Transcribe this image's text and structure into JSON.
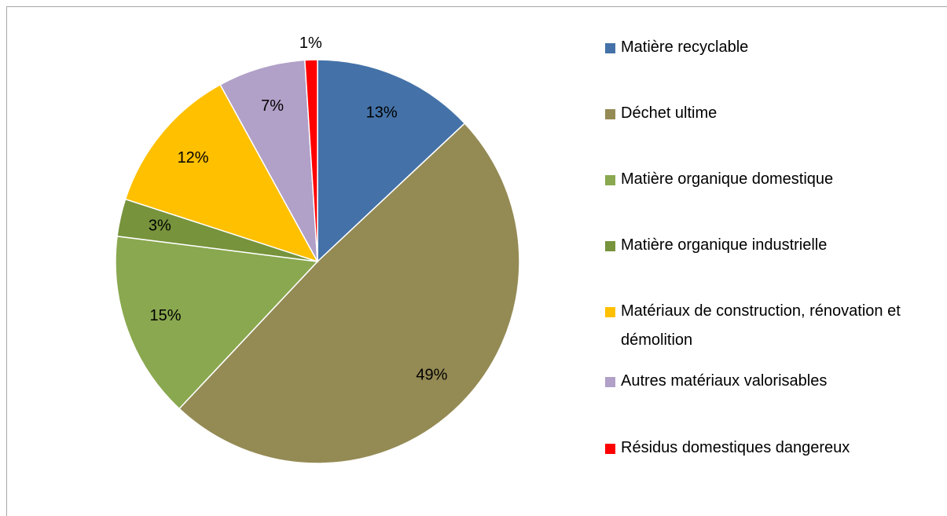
{
  "chart_data": {
    "type": "pie",
    "categories": [
      "Matière recyclable",
      "Déchet ultime",
      "Matière organique domestique",
      "Matière organique industrielle",
      "Matériaux de construction, rénovation et démolition",
      "Autres matériaux valorisables",
      "Résidus domestiques dangereux"
    ],
    "values": [
      13,
      49,
      15,
      3,
      12,
      7,
      1
    ],
    "value_labels": [
      "13%",
      "49%",
      "15%",
      "3%",
      "12%",
      "7%",
      "1%"
    ],
    "colors": [
      "#4472a8",
      "#948a54",
      "#8aa84f",
      "#77933c",
      "#ffc000",
      "#b1a0c7",
      "#ff0000"
    ],
    "legend": "right"
  }
}
